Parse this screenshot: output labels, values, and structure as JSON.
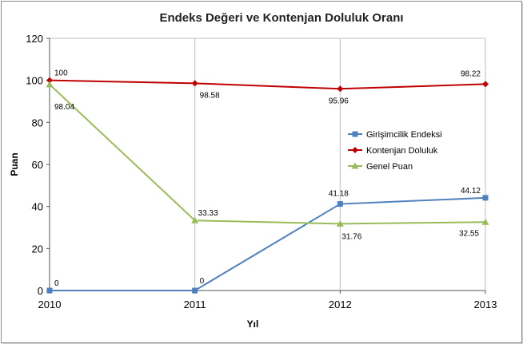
{
  "chart_data": {
    "type": "line",
    "title": "Endeks Değeri ve Kontenjan Doluluk Oranı",
    "xlabel": "Yıl",
    "ylabel": "Puan",
    "x": [
      "2010",
      "2011",
      "2012",
      "2013"
    ],
    "ylim": [
      0,
      120
    ],
    "yticks": [
      0,
      20,
      40,
      60,
      80,
      100,
      120
    ],
    "grid": "vertical",
    "legend_position": "right",
    "series": [
      {
        "name": "Girişimcilik Endeksi",
        "values": [
          0,
          0,
          41.18,
          44.12
        ],
        "labels": [
          "0",
          "0",
          "41.18",
          "44.12"
        ],
        "color": "#4f81bd",
        "marker": "square"
      },
      {
        "name": "Kontenjan Doluluk",
        "values": [
          100,
          98.58,
          95.96,
          98.22
        ],
        "labels": [
          "100",
          "98.58",
          "95.96",
          "98.22"
        ],
        "color": "#c00000",
        "marker": "diamond"
      },
      {
        "name": "Genel Puan",
        "values": [
          98.04,
          33.33,
          31.76,
          32.55
        ],
        "labels": [
          "98.04",
          "33.33",
          "31.76",
          "32.55"
        ],
        "color": "#9bbb59",
        "marker": "triangle"
      }
    ]
  }
}
